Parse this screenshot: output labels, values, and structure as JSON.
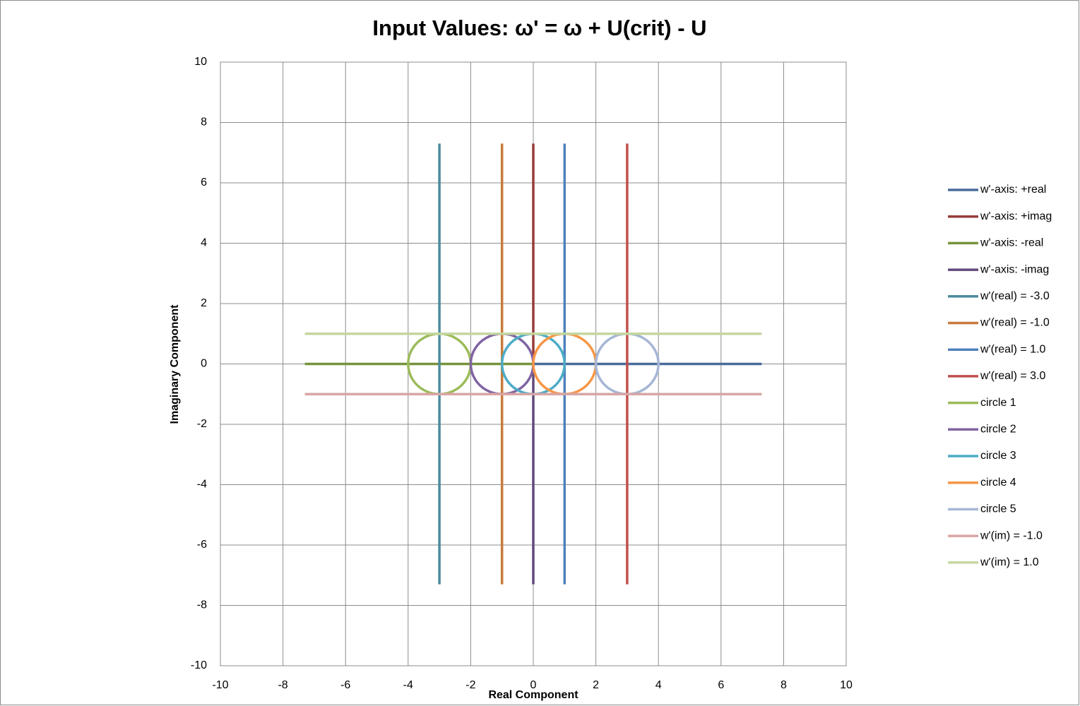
{
  "chart_data": {
    "type": "line",
    "title": "Input Values:  ω' =   ω + U(crit) - U",
    "x_label": "Real Component",
    "y_label": "Imaginary Component",
    "xlim": [
      -10,
      10
    ],
    "ylim": [
      -10,
      10
    ],
    "xticks": [
      -10,
      -8,
      -6,
      -4,
      -2,
      0,
      2,
      4,
      6,
      8,
      10
    ],
    "yticks": [
      -10,
      -8,
      -6,
      -4,
      -2,
      0,
      2,
      4,
      6,
      8,
      10
    ],
    "grid": true,
    "legend": "right",
    "series": [
      {
        "name": "w'-axis: +real",
        "color": "#4a6b9b",
        "x": [
          0,
          7.3
        ],
        "values": [
          0,
          0
        ]
      },
      {
        "name": "w'-axis: +imag",
        "color": "#963c3a",
        "x": [
          0,
          0
        ],
        "values": [
          0,
          7.3
        ]
      },
      {
        "name": "w'-axis: -real",
        "color": "#77933c",
        "x": [
          0,
          -7.3
        ],
        "values": [
          0,
          0
        ]
      },
      {
        "name": "w'-axis: -imag",
        "color": "#604a7b",
        "x": [
          0,
          0
        ],
        "values": [
          0,
          -7.3
        ]
      },
      {
        "name": "w'(real) = -3.0",
        "color": "#4b8c9c",
        "x": [
          -3,
          -3
        ],
        "values": [
          -7.3,
          7.3
        ]
      },
      {
        "name": "w'(real) = -1.0",
        "color": "#c87a3c",
        "x": [
          -1,
          -1
        ],
        "values": [
          -7.3,
          7.3
        ]
      },
      {
        "name": "w'(real) = 1.0",
        "color": "#4f81bd",
        "x": [
          1,
          1
        ],
        "values": [
          -7.3,
          7.3
        ]
      },
      {
        "name": "w'(real) = 3.0",
        "color": "#c0504d",
        "x": [
          3,
          3
        ],
        "values": [
          -7.3,
          7.3
        ]
      },
      {
        "name": "circle 1",
        "color": "#9bbb59",
        "x": [
          -2,
          -2.134,
          -2.5,
          -3,
          -3.5,
          -3.866,
          -4,
          -3.866,
          -3.5,
          -3,
          -2.5,
          -2.134,
          -2
        ],
        "values": [
          0,
          0.5,
          0.866,
          1,
          0.866,
          0.5,
          0,
          -0.5,
          -0.866,
          -1,
          -0.866,
          -0.5,
          0
        ]
      },
      {
        "name": "circle 2",
        "color": "#8064a2",
        "x": [
          0,
          -0.134,
          -0.5,
          -1,
          -1.5,
          -1.866,
          -2,
          -1.866,
          -1.5,
          -1,
          -0.5,
          -0.134,
          0
        ],
        "values": [
          0,
          0.5,
          0.866,
          1,
          0.866,
          0.5,
          0,
          -0.5,
          -0.866,
          -1,
          -0.866,
          -0.5,
          0
        ]
      },
      {
        "name": "circle 3",
        "color": "#4bacc6",
        "x": [
          1,
          0.866,
          0.5,
          0,
          -0.5,
          -0.866,
          -1,
          -0.866,
          -0.5,
          0,
          0.5,
          0.866,
          1
        ],
        "values": [
          0,
          0.5,
          0.866,
          1,
          0.866,
          0.5,
          0,
          -0.5,
          -0.866,
          -1,
          -0.866,
          -0.5,
          0
        ]
      },
      {
        "name": "circle 4",
        "color": "#f79646",
        "x": [
          2,
          1.866,
          1.5,
          1,
          0.5,
          0.134,
          0,
          0.134,
          0.5,
          1,
          1.5,
          1.866,
          2
        ],
        "values": [
          0,
          0.5,
          0.866,
          1,
          0.866,
          0.5,
          0,
          -0.5,
          -0.866,
          -1,
          -0.866,
          -0.5,
          0
        ]
      },
      {
        "name": "circle 5",
        "color": "#a5b6d4",
        "x": [
          4,
          3.866,
          3.5,
          3,
          2.5,
          2.134,
          2,
          2.134,
          2.5,
          3,
          3.5,
          3.866,
          4
        ],
        "values": [
          0,
          0.5,
          0.866,
          1,
          0.866,
          0.5,
          0,
          -0.5,
          -0.866,
          -1,
          -0.866,
          -0.5,
          0
        ]
      },
      {
        "name": "w'(im) = -1.0",
        "color": "#d8a6a5",
        "x": [
          -7.3,
          7.3
        ],
        "values": [
          -1,
          -1
        ]
      },
      {
        "name": "w'(im) = 1.0",
        "color": "#c4d7a0",
        "x": [
          -7.3,
          7.3
        ],
        "values": [
          1,
          1
        ]
      }
    ]
  }
}
